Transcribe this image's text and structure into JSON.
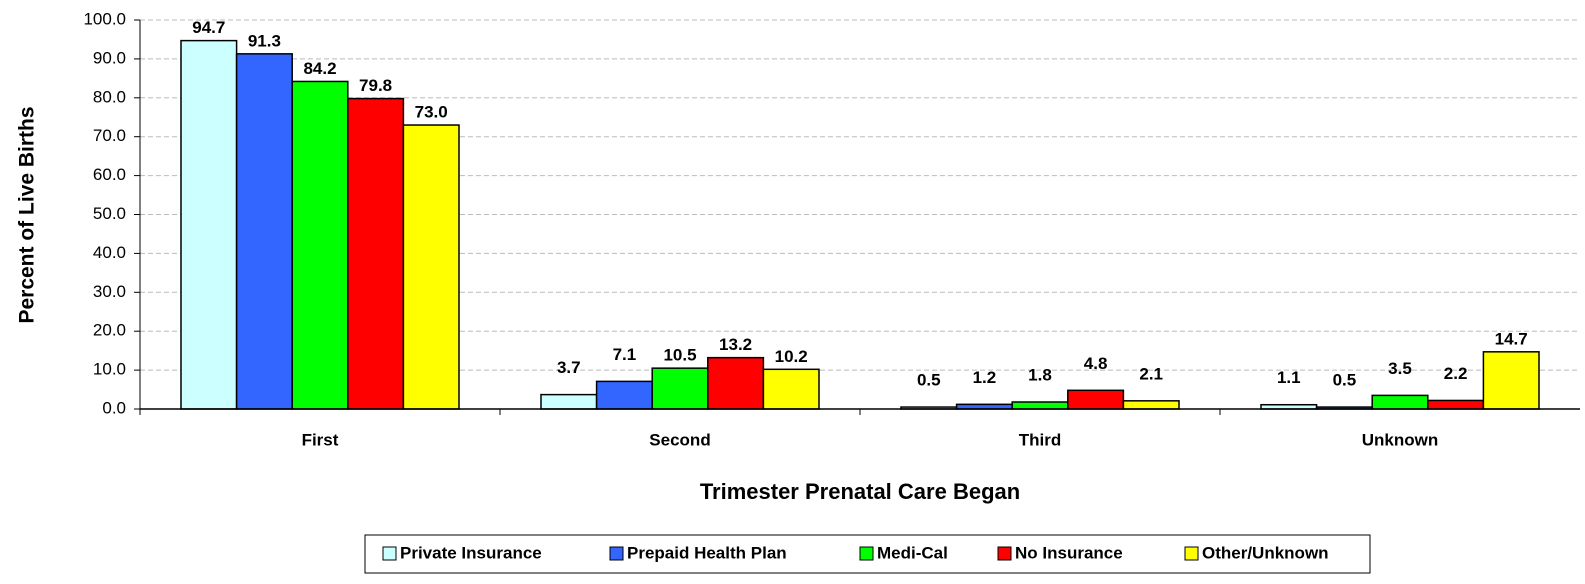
{
  "chart_data": {
    "type": "bar",
    "x_label": "Trimester Prenatal Care Began",
    "y_label": "Percent of Live Births",
    "categories": [
      "First",
      "Second",
      "Third",
      "Unknown"
    ],
    "series": [
      {
        "name": "Private Insurance",
        "color": "#ccffff",
        "values": [
          94.7,
          3.7,
          0.5,
          1.1
        ],
        "value_labels": [
          "94.7",
          "3.7",
          "0.5",
          "1.1"
        ]
      },
      {
        "name": "Prepaid Health Plan",
        "color": "#3366ff",
        "values": [
          91.3,
          7.1,
          1.2,
          0.5
        ],
        "value_labels": [
          "91.3",
          "7.1",
          "1.2",
          "0.5"
        ]
      },
      {
        "name": "Medi-Cal",
        "color": "#00ff00",
        "values": [
          84.2,
          10.5,
          1.8,
          3.5
        ],
        "value_labels": [
          "84.2",
          "10.5",
          "1.8",
          "3.5"
        ]
      },
      {
        "name": "No Insurance",
        "color": "#ff0000",
        "values": [
          79.8,
          13.2,
          4.8,
          2.2
        ],
        "value_labels": [
          "79.8",
          "13.2",
          "4.8",
          "2.2"
        ]
      },
      {
        "name": "Other/Unknown",
        "color": "#ffff00",
        "values": [
          73,
          10.2,
          2.1,
          14.7
        ],
        "value_labels": [
          "73.0",
          "10.2",
          "2.1",
          "14.7"
        ]
      }
    ],
    "ylim": [
      0,
      100
    ],
    "yticks": [
      {
        "value": 0,
        "label": "0.0"
      },
      {
        "value": 10,
        "label": "10.0"
      },
      {
        "value": 20,
        "label": "20.0"
      },
      {
        "value": 30,
        "label": "30.0"
      },
      {
        "value": 40,
        "label": "40.0"
      },
      {
        "value": 50,
        "label": "50.0"
      },
      {
        "value": 60,
        "label": "60.0"
      },
      {
        "value": 70,
        "label": "70.0"
      },
      {
        "value": 80,
        "label": "80.0"
      },
      {
        "value": 90,
        "label": "90.0"
      },
      {
        "value": 100,
        "label": "100.0"
      }
    ],
    "grid": true,
    "legend": "bottom"
  }
}
